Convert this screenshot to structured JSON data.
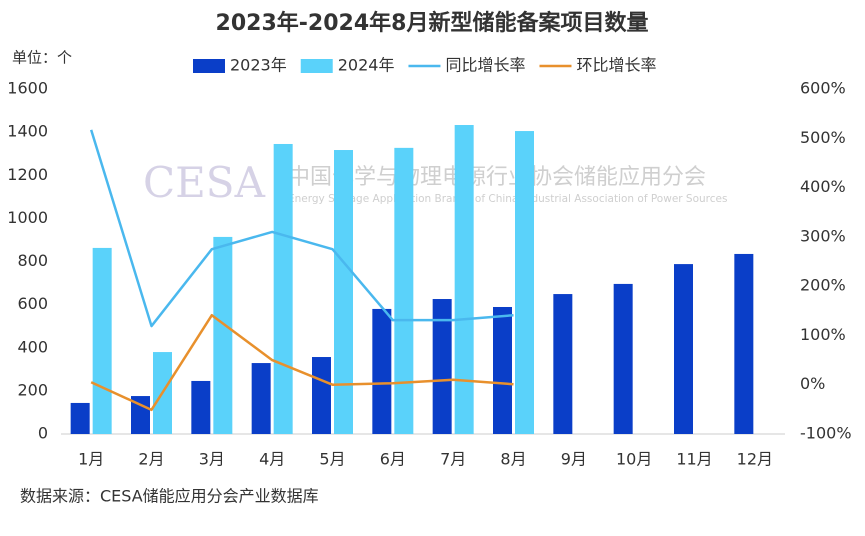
{
  "chart_data": {
    "type": "bar",
    "title": "2023年-2024年8月新型储能备案项目数量",
    "y_axis_label": "单位：个",
    "source": "数据来源：CESA储能应用分会产业数据库",
    "watermark": {
      "logo": "CESA",
      "name": "中国化学与物理电源行业协会储能应用分会",
      "name_en": "Energy Storage Application Branch of China Industrial Association of Power Sources"
    },
    "categories": [
      "1月",
      "2月",
      "3月",
      "4月",
      "5月",
      "6月",
      "7月",
      "8月",
      "9月",
      "10月",
      "11月",
      "12月"
    ],
    "series": [
      {
        "name": "2023年",
        "type": "bar",
        "color": "#0a3ec8",
        "values": [
          144,
          176,
          246,
          329,
          357,
          580,
          626,
          589,
          649,
          696,
          788,
          835
        ]
      },
      {
        "name": "2024年",
        "type": "bar",
        "color": "#5ad2fa",
        "values": [
          863,
          380,
          914,
          1345,
          1317,
          1327,
          1433,
          1405,
          null,
          null,
          null,
          null
        ]
      },
      {
        "name": "同比增长率",
        "type": "line",
        "axis": "y2",
        "color": "#4ab8ee",
        "values": [
          517,
          119,
          275,
          310,
          275,
          131,
          131,
          141,
          null,
          null,
          null,
          null
        ]
      },
      {
        "name": "环比增长率",
        "type": "line",
        "axis": "y2",
        "color": "#e8902c",
        "values": [
          5,
          -51,
          141,
          50,
          0,
          3,
          10,
          1,
          null,
          null,
          null,
          null
        ]
      }
    ],
    "ylim": [
      0,
      1600
    ],
    "yticks": [
      0,
      200,
      400,
      600,
      800,
      1000,
      1200,
      1400,
      1600
    ],
    "y2lim": [
      -100,
      600
    ],
    "y2ticks": [
      {
        "value": -100,
        "label": "-100%"
      },
      {
        "value": 0,
        "label": "0%"
      },
      {
        "value": 100,
        "label": "100%"
      },
      {
        "value": 200,
        "label": "200%"
      },
      {
        "value": 300,
        "label": "300%"
      },
      {
        "value": 400,
        "label": "400%"
      },
      {
        "value": 500,
        "label": "500%"
      },
      {
        "value": 600,
        "label": "600%"
      }
    ],
    "grid": false,
    "legend": "top"
  }
}
